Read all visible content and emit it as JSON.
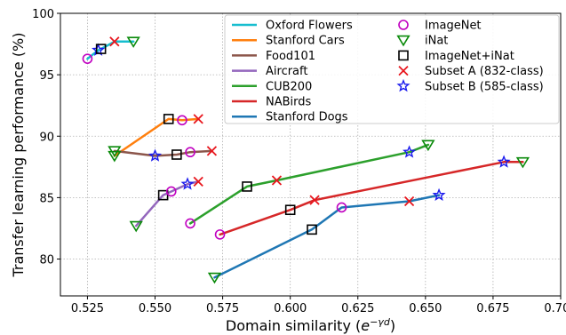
{
  "chart_data": {
    "type": "line",
    "title": "",
    "xlabel_prefix": "Domain similarity (",
    "xlabel_italic": "e",
    "xlabel_sup": "−γd",
    "xlabel_suffix": ")",
    "ylabel": "Transfer learning performance (%)",
    "xlim": [
      0.515,
      0.7
    ],
    "ylim": [
      77,
      100
    ],
    "xticks": [
      0.525,
      0.55,
      0.575,
      0.6,
      0.625,
      0.65,
      0.675,
      0.7
    ],
    "xtick_labels": [
      "0.525",
      "0.550",
      "0.575",
      "0.600",
      "0.625",
      "0.650",
      "0.675",
      "0.700"
    ],
    "yticks": [
      80,
      85,
      90,
      95,
      100
    ],
    "ytick_labels": [
      "80",
      "85",
      "90",
      "95",
      "100"
    ],
    "grid": true,
    "legend_placement": "top-right",
    "colors": {
      "oxford": "#17becf",
      "cars": "#ff7f0e",
      "food": "#8c564b",
      "aircraft": "#9467bd",
      "cub": "#2ca02c",
      "nabirds": "#d62728",
      "dogs": "#1f77b4",
      "imagenet_marker": "#c000c0",
      "inat_marker": "#0a8a0a",
      "combined_marker": "#000000",
      "subset_a_marker": "#e8161d",
      "subset_b_marker": "#1a1aee"
    },
    "series": [
      {
        "name": "Oxford Flowers",
        "color_key": "oxford",
        "points": [
          {
            "x": 0.525,
            "y": 96.3,
            "m": "imagenet"
          },
          {
            "x": 0.529,
            "y": 97.0,
            "m": "subsetb"
          },
          {
            "x": 0.53,
            "y": 97.1,
            "m": "combined"
          },
          {
            "x": 0.535,
            "y": 97.7,
            "m": "subseta"
          },
          {
            "x": 0.542,
            "y": 97.7,
            "m": "inat"
          }
        ]
      },
      {
        "name": "Stanford Cars",
        "color_key": "cars",
        "points": [
          {
            "x": 0.535,
            "y": 88.4,
            "m": "inat"
          },
          {
            "x": 0.555,
            "y": 91.4,
            "m": "combined"
          },
          {
            "x": 0.56,
            "y": 91.3,
            "m": "imagenet"
          },
          {
            "x": 0.566,
            "y": 91.4,
            "m": "subseta"
          }
        ]
      },
      {
        "name": "Food101",
        "color_key": "food",
        "points": [
          {
            "x": 0.535,
            "y": 88.8,
            "m": "inat"
          },
          {
            "x": 0.55,
            "y": 88.4,
            "m": "subsetb"
          },
          {
            "x": 0.558,
            "y": 88.5,
            "m": "combined"
          },
          {
            "x": 0.563,
            "y": 88.7,
            "m": "imagenet"
          },
          {
            "x": 0.571,
            "y": 88.8,
            "m": "subseta"
          }
        ]
      },
      {
        "name": "Aircraft",
        "color_key": "aircraft",
        "points": [
          {
            "x": 0.543,
            "y": 82.7,
            "m": "inat"
          },
          {
            "x": 0.553,
            "y": 85.2,
            "m": "combined"
          },
          {
            "x": 0.556,
            "y": 85.5,
            "m": "imagenet"
          },
          {
            "x": 0.562,
            "y": 86.1,
            "m": "subsetb"
          },
          {
            "x": 0.566,
            "y": 86.3,
            "m": "subseta"
          }
        ]
      },
      {
        "name": "CUB200",
        "color_key": "cub",
        "points": [
          {
            "x": 0.563,
            "y": 82.9,
            "m": "imagenet"
          },
          {
            "x": 0.584,
            "y": 85.9,
            "m": "combined"
          },
          {
            "x": 0.595,
            "y": 86.4,
            "m": "subseta"
          },
          {
            "x": 0.644,
            "y": 88.7,
            "m": "subsetb"
          },
          {
            "x": 0.651,
            "y": 89.3,
            "m": "inat"
          }
        ]
      },
      {
        "name": "NABirds",
        "color_key": "nabirds",
        "points": [
          {
            "x": 0.574,
            "y": 82.0,
            "m": "imagenet"
          },
          {
            "x": 0.6,
            "y": 84.0,
            "m": "combined"
          },
          {
            "x": 0.609,
            "y": 84.8,
            "m": "subseta"
          },
          {
            "x": 0.679,
            "y": 87.9,
            "m": "subsetb"
          },
          {
            "x": 0.686,
            "y": 87.9,
            "m": "inat"
          }
        ]
      },
      {
        "name": "Stanford Dogs",
        "color_key": "dogs",
        "points": [
          {
            "x": 0.572,
            "y": 78.5,
            "m": "inat"
          },
          {
            "x": 0.608,
            "y": 82.4,
            "m": "combined"
          },
          {
            "x": 0.619,
            "y": 84.2,
            "m": "imagenet"
          },
          {
            "x": 0.644,
            "y": 84.7,
            "m": "subseta"
          },
          {
            "x": 0.655,
            "y": 85.2,
            "m": "subsetb"
          }
        ]
      }
    ],
    "legend": {
      "lines": [
        {
          "label": "Oxford Flowers",
          "color_key": "oxford"
        },
        {
          "label": "Stanford Cars",
          "color_key": "cars"
        },
        {
          "label": "Food101",
          "color_key": "food"
        },
        {
          "label": "Aircraft",
          "color_key": "aircraft"
        },
        {
          "label": "CUB200",
          "color_key": "cub"
        },
        {
          "label": "NABirds",
          "color_key": "nabirds"
        },
        {
          "label": "Stanford Dogs",
          "color_key": "dogs"
        }
      ],
      "markers": [
        {
          "label": "ImageNet",
          "m": "imagenet"
        },
        {
          "label": "iNat",
          "m": "inat"
        },
        {
          "label": "ImageNet+iNat",
          "m": "combined"
        },
        {
          "label": "Subset A (832-class)",
          "m": "subseta"
        },
        {
          "label": "Subset B (585-class)",
          "m": "subsetb"
        }
      ]
    }
  }
}
